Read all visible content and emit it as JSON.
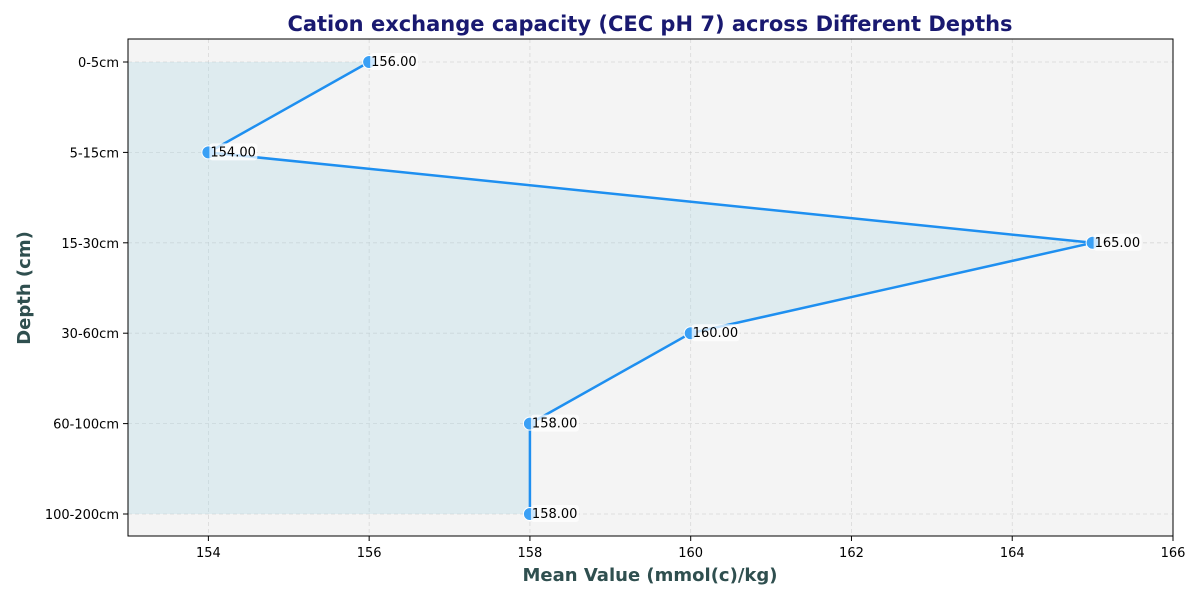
{
  "chart_data": {
    "type": "line",
    "title": "Cation exchange capacity (CEC pH 7) across Different Depths",
    "xlabel": "Mean Value (mmol(c)/kg)",
    "ylabel": "Depth (cm)",
    "categories": [
      "0-5cm",
      "5-15cm",
      "15-30cm",
      "30-60cm",
      "60-100cm",
      "100-200cm"
    ],
    "values": [
      156,
      154,
      165,
      160,
      158,
      158
    ],
    "data_labels": [
      "156.00",
      "154.00",
      "165.00",
      "160.00",
      "158.00",
      "158.00"
    ],
    "xlim": [
      153,
      166
    ],
    "xticks": [
      154,
      156,
      158,
      160,
      162,
      164,
      166
    ],
    "orientation": "horizontal-values-vertical-categories",
    "grid": true,
    "fill_area": true,
    "colors": {
      "line": "#1e8ff0",
      "marker": "#3aa0f5",
      "fill": "#add8e6",
      "plot_bg": "#f4f4f4",
      "title": "#191970",
      "axis_title": "#2f4f4f"
    }
  }
}
